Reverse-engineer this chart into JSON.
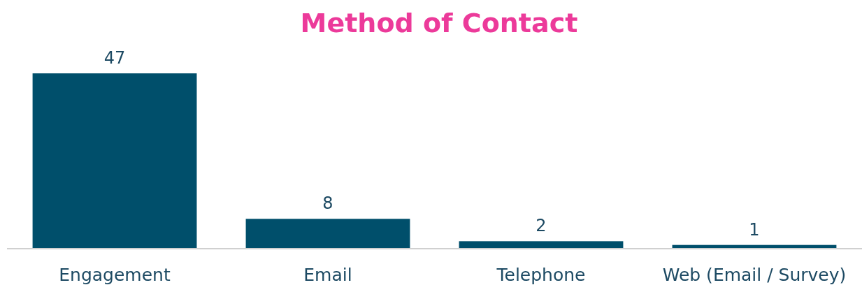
{
  "chart_data": {
    "type": "bar",
    "title": "Method of Contact",
    "categories": [
      "Engagement",
      "Email",
      "Telephone",
      "Web (Email / Survey)"
    ],
    "values": [
      47,
      8,
      2,
      1
    ],
    "color": "#004f6b",
    "data_labels": true
  }
}
